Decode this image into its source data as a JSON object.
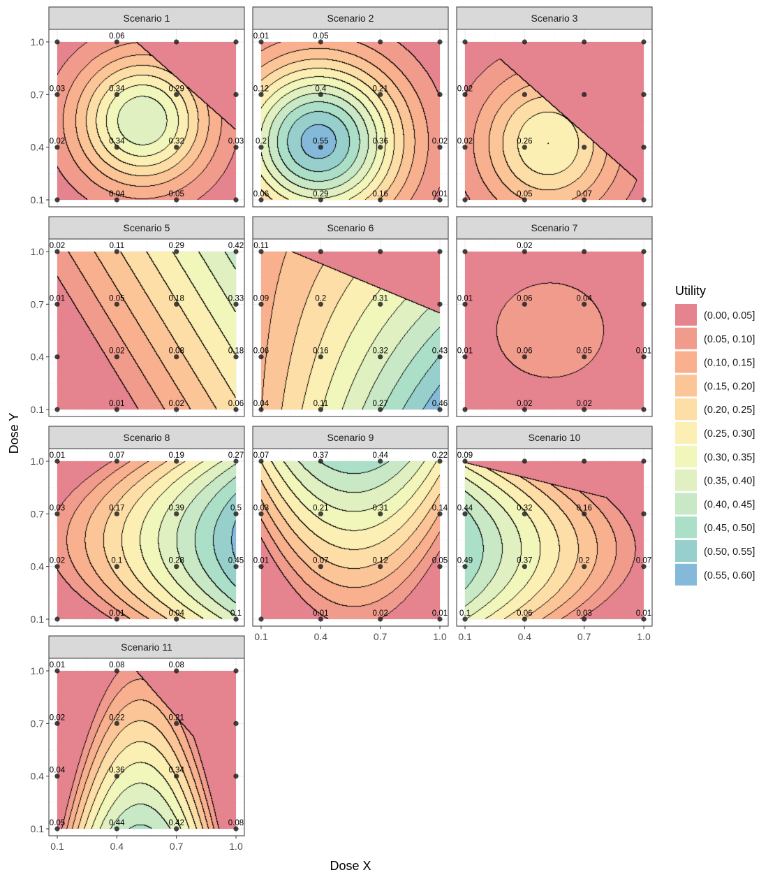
{
  "chart_data": {
    "type": "heatmap",
    "subtype": "faceted filled contour",
    "xlabel": "Dose X",
    "ylabel": "Dose Y",
    "x_ticks": [
      "0.1",
      "0.4",
      "0.7",
      "1.0"
    ],
    "y_ticks": [
      "0.1",
      "0.4",
      "0.7",
      "1.0"
    ],
    "dose_levels": [
      0.1,
      0.4,
      0.7,
      1.0
    ],
    "xlim": [
      0.05,
      1.05
    ],
    "ylim": [
      0.05,
      1.05
    ],
    "grid": true,
    "legend": {
      "title": "Utility",
      "position": "right",
      "bins": [
        {
          "label": "(0.00, 0.05]",
          "color": "#e5838f"
        },
        {
          "label": "(0.05, 0.10]",
          "color": "#f19b8d"
        },
        {
          "label": "(0.10, 0.15]",
          "color": "#f8b08e"
        },
        {
          "label": "(0.15, 0.20]",
          "color": "#fcc597"
        },
        {
          "label": "(0.20, 0.25]",
          "color": "#fddea6"
        },
        {
          "label": "(0.25, 0.30]",
          "color": "#fbefb3"
        },
        {
          "label": "(0.30, 0.35]",
          "color": "#f1f6bb"
        },
        {
          "label": "(0.35, 0.40]",
          "color": "#e1f0c1"
        },
        {
          "label": "(0.40, 0.45]",
          "color": "#c8e8c6"
        },
        {
          "label": "(0.45, 0.50]",
          "color": "#abdfc8"
        },
        {
          "label": "(0.50, 0.55]",
          "color": "#96cfcb"
        },
        {
          "label": "(0.55, 0.60]",
          "color": "#84b9da"
        }
      ]
    },
    "panels": [
      {
        "title": "Scenario 1",
        "row": 0,
        "col": 0,
        "show_x_axis": false,
        "show_y_axis": true,
        "labels": [
          [
            "0.06",
            0.4,
            1.0
          ],
          [
            "0.03",
            0.1,
            0.7
          ],
          [
            "0.34",
            0.4,
            0.7
          ],
          [
            "0.29",
            0.7,
            0.7
          ],
          [
            "0.02",
            0.1,
            0.4
          ],
          [
            "0.34",
            0.4,
            0.4
          ],
          [
            "0.32",
            0.7,
            0.4
          ],
          [
            "0.03",
            1.0,
            0.4
          ],
          [
            "0.04",
            0.4,
            0.1
          ],
          [
            "0.05",
            0.7,
            0.1
          ]
        ]
      },
      {
        "title": "Scenario 2",
        "row": 0,
        "col": 1,
        "show_x_axis": false,
        "show_y_axis": false,
        "labels": [
          [
            "0.01",
            0.1,
            1.0
          ],
          [
            "0.05",
            0.4,
            1.0
          ],
          [
            "0.12",
            0.1,
            0.7
          ],
          [
            "0.4",
            0.4,
            0.7
          ],
          [
            "0.21",
            0.7,
            0.7
          ],
          [
            "0.2",
            0.1,
            0.4
          ],
          [
            "0.55",
            0.4,
            0.4
          ],
          [
            "0.36",
            0.7,
            0.4
          ],
          [
            "0.02",
            1.0,
            0.4
          ],
          [
            "0.06",
            0.1,
            0.1
          ],
          [
            "0.29",
            0.4,
            0.1
          ],
          [
            "0.16",
            0.7,
            0.1
          ],
          [
            "0.01",
            1.0,
            0.1
          ]
        ]
      },
      {
        "title": "Scenario 3",
        "row": 0,
        "col": 2,
        "show_x_axis": false,
        "show_y_axis": false,
        "labels": [
          [
            "0.02",
            0.1,
            0.7
          ],
          [
            "0.02",
            0.1,
            0.4
          ],
          [
            "0.26",
            0.4,
            0.4
          ],
          [
            "0.05",
            0.4,
            0.1
          ],
          [
            "0.07",
            0.7,
            0.1
          ]
        ]
      },
      {
        "title": "Scenario 5",
        "row": 1,
        "col": 0,
        "show_x_axis": false,
        "show_y_axis": true,
        "labels": [
          [
            "0.02",
            0.1,
            1.0
          ],
          [
            "0.11",
            0.4,
            1.0
          ],
          [
            "0.29",
            0.7,
            1.0
          ],
          [
            "0.42",
            1.0,
            1.0
          ],
          [
            "0.01",
            0.1,
            0.7
          ],
          [
            "0.05",
            0.4,
            0.7
          ],
          [
            "0.18",
            0.7,
            0.7
          ],
          [
            "0.33",
            1.0,
            0.7
          ],
          [
            "0.02",
            0.4,
            0.4
          ],
          [
            "0.08",
            0.7,
            0.4
          ],
          [
            "0.18",
            1.0,
            0.4
          ],
          [
            "0.01",
            0.4,
            0.1
          ],
          [
            "0.02",
            0.7,
            0.1
          ],
          [
            "0.06",
            1.0,
            0.1
          ]
        ]
      },
      {
        "title": "Scenario 6",
        "row": 1,
        "col": 1,
        "show_x_axis": false,
        "show_y_axis": false,
        "labels": [
          [
            "0.11",
            0.1,
            1.0
          ],
          [
            "0.09",
            0.1,
            0.7
          ],
          [
            "0.2",
            0.4,
            0.7
          ],
          [
            "0.31",
            0.7,
            0.7
          ],
          [
            "0.06",
            0.1,
            0.4
          ],
          [
            "0.16",
            0.4,
            0.4
          ],
          [
            "0.32",
            0.7,
            0.4
          ],
          [
            "0.43",
            1.0,
            0.4
          ],
          [
            "0.04",
            0.1,
            0.1
          ],
          [
            "0.11",
            0.4,
            0.1
          ],
          [
            "0.27",
            0.7,
            0.1
          ],
          [
            "0.46",
            1.0,
            0.1
          ]
        ]
      },
      {
        "title": "Scenario 7",
        "row": 1,
        "col": 2,
        "show_x_axis": false,
        "show_y_axis": false,
        "labels": [
          [
            "0.02",
            0.4,
            1.0
          ],
          [
            "0.01",
            0.1,
            0.7
          ],
          [
            "0.06",
            0.4,
            0.7
          ],
          [
            "0.04",
            0.7,
            0.7
          ],
          [
            "0.01",
            0.1,
            0.4
          ],
          [
            "0.06",
            0.4,
            0.4
          ],
          [
            "0.05",
            0.7,
            0.4
          ],
          [
            "0.01",
            1.0,
            0.4
          ],
          [
            "0.02",
            0.4,
            0.1
          ],
          [
            "0.02",
            0.7,
            0.1
          ]
        ]
      },
      {
        "title": "Scenario 8",
        "row": 2,
        "col": 0,
        "show_x_axis": false,
        "show_y_axis": true,
        "labels": [
          [
            "0.01",
            0.1,
            1.0
          ],
          [
            "0.07",
            0.4,
            1.0
          ],
          [
            "0.19",
            0.7,
            1.0
          ],
          [
            "0.27",
            1.0,
            1.0
          ],
          [
            "0.03",
            0.1,
            0.7
          ],
          [
            "0.17",
            0.4,
            0.7
          ],
          [
            "0.39",
            0.7,
            0.7
          ],
          [
            "0.5",
            1.0,
            0.7
          ],
          [
            "0.02",
            0.1,
            0.4
          ],
          [
            "0.1",
            0.4,
            0.4
          ],
          [
            "0.28",
            0.7,
            0.4
          ],
          [
            "0.45",
            1.0,
            0.4
          ],
          [
            "0.01",
            0.4,
            0.1
          ],
          [
            "0.04",
            0.7,
            0.1
          ],
          [
            "0.1",
            1.0,
            0.1
          ]
        ]
      },
      {
        "title": "Scenario 9",
        "row": 2,
        "col": 1,
        "show_x_axis": true,
        "show_y_axis": false,
        "labels": [
          [
            "0.07",
            0.1,
            1.0
          ],
          [
            "0.37",
            0.4,
            1.0
          ],
          [
            "0.44",
            0.7,
            1.0
          ],
          [
            "0.22",
            1.0,
            1.0
          ],
          [
            "0.03",
            0.1,
            0.7
          ],
          [
            "0.21",
            0.4,
            0.7
          ],
          [
            "0.31",
            0.7,
            0.7
          ],
          [
            "0.14",
            1.0,
            0.7
          ],
          [
            "0.01",
            0.1,
            0.4
          ],
          [
            "0.07",
            0.4,
            0.4
          ],
          [
            "0.12",
            0.7,
            0.4
          ],
          [
            "0.05",
            1.0,
            0.4
          ],
          [
            "0.01",
            0.4,
            0.1
          ],
          [
            "0.02",
            0.7,
            0.1
          ],
          [
            "0.01",
            1.0,
            0.1
          ]
        ]
      },
      {
        "title": "Scenario 10",
        "row": 2,
        "col": 2,
        "show_x_axis": true,
        "show_y_axis": false,
        "labels": [
          [
            "0.09",
            0.1,
            1.0
          ],
          [
            "0.44",
            0.1,
            0.7
          ],
          [
            "0.32",
            0.4,
            0.7
          ],
          [
            "0.16",
            0.7,
            0.7
          ],
          [
            "0.49",
            0.1,
            0.4
          ],
          [
            "0.37",
            0.4,
            0.4
          ],
          [
            "0.2",
            0.7,
            0.4
          ],
          [
            "0.07",
            1.0,
            0.4
          ],
          [
            "0.1",
            0.1,
            0.1
          ],
          [
            "0.06",
            0.4,
            0.1
          ],
          [
            "0.03",
            0.7,
            0.1
          ],
          [
            "0.01",
            1.0,
            0.1
          ]
        ]
      },
      {
        "title": "Scenario 11",
        "row": 3,
        "col": 0,
        "show_x_axis": true,
        "show_y_axis": true,
        "labels": [
          [
            "0.01",
            0.1,
            1.0
          ],
          [
            "0.08",
            0.4,
            1.0
          ],
          [
            "0.08",
            0.7,
            1.0
          ],
          [
            "0.02",
            0.1,
            0.7
          ],
          [
            "0.22",
            0.4,
            0.7
          ],
          [
            "0.21",
            0.7,
            0.7
          ],
          [
            "0.04",
            0.1,
            0.4
          ],
          [
            "0.36",
            0.4,
            0.4
          ],
          [
            "0.34",
            0.7,
            0.4
          ],
          [
            "0.05",
            0.1,
            0.1
          ],
          [
            "0.44",
            0.4,
            0.1
          ],
          [
            "0.42",
            0.7,
            0.1
          ],
          [
            "0.08",
            1.0,
            0.1
          ]
        ]
      }
    ]
  }
}
